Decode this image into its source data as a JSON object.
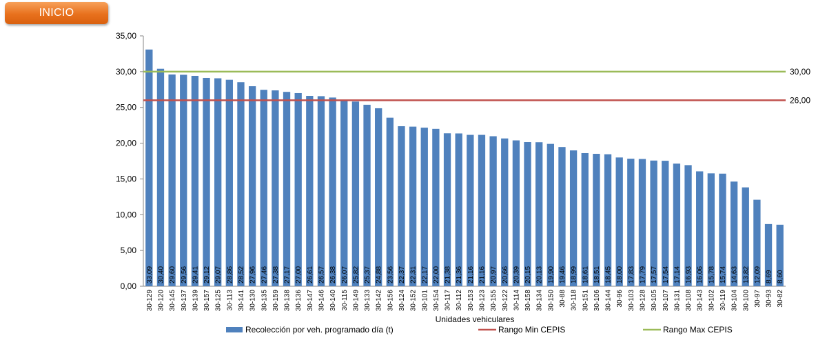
{
  "nav": {
    "inicio_label": "INICIO"
  },
  "colors": {
    "bars": "#4f81bd",
    "min_line": "#c0504d",
    "max_line": "#9bbb59",
    "button": "#e8711d"
  },
  "chart_data": {
    "type": "bar",
    "xlabel": "Unidades vehiculares",
    "ylim": [
      0,
      35
    ],
    "y_ticks": [
      "0,00",
      "5,00",
      "10,00",
      "15,00",
      "20,00",
      "25,00",
      "30,00",
      "35,00"
    ],
    "categories": [
      "30-129",
      "30-120",
      "30-145",
      "30-137",
      "30-139",
      "30-157",
      "30-125",
      "30-113",
      "30-141",
      "30-130",
      "30-135",
      "30-159",
      "30-138",
      "30-136",
      "30-147",
      "30-146",
      "30-140",
      "30-115",
      "30-149",
      "30-133",
      "30-142",
      "30-156",
      "30-124",
      "30-152",
      "30-101",
      "30-154",
      "30-117",
      "30-112",
      "30-153",
      "30-123",
      "30-155",
      "30-122",
      "30-114",
      "30-158",
      "30-134",
      "30-150",
      "30-88",
      "30-118",
      "30-151",
      "30-106",
      "30-144",
      "30-96",
      "30-103",
      "30-128",
      "30-105",
      "30-107",
      "30-131",
      "30-108",
      "30-143",
      "30-102",
      "30-119",
      "30-104",
      "30-100",
      "30-97",
      "30-93",
      "30-82"
    ],
    "series": [
      {
        "name": "Recolección por veh. programado día (t)",
        "type": "bar",
        "values": [
          33.09,
          30.4,
          29.6,
          29.56,
          29.41,
          29.12,
          29.07,
          28.86,
          28.52,
          27.96,
          27.46,
          27.38,
          27.17,
          27.0,
          26.61,
          26.57,
          26.38,
          26.07,
          25.82,
          25.37,
          24.88,
          23.56,
          22.37,
          22.31,
          22.17,
          22.0,
          21.38,
          21.36,
          21.16,
          21.16,
          20.97,
          20.66,
          20.39,
          20.15,
          20.13,
          19.9,
          19.46,
          18.99,
          18.61,
          18.51,
          18.45,
          18.0,
          17.83,
          17.79,
          17.57,
          17.54,
          17.14,
          16.93,
          16.06,
          15.78,
          15.74,
          14.63,
          13.82,
          12.09,
          8.69,
          8.6
        ],
        "labels": [
          "33,09",
          "30,40",
          "29,60",
          "29,56",
          "29,41",
          "29,12",
          "29,07",
          "28,86",
          "28,52",
          "27,96",
          "27,46",
          "27,38",
          "27,17",
          "27,00",
          "26,61",
          "26,57",
          "26,38",
          "26,07",
          "25,82",
          "25,37",
          "24,88",
          "23,56",
          "22,37",
          "22,31",
          "22,17",
          "22,00",
          "21,38",
          "21,36",
          "21,16",
          "21,16",
          "20,97",
          "20,66",
          "20,39",
          "20,15",
          "20,13",
          "19,90",
          "19,46",
          "18,99",
          "18,61",
          "18,51",
          "18,45",
          "18,00",
          "17,83",
          "17,79",
          "17,57",
          "17,54",
          "17,14",
          "16,93",
          "16,06",
          "15,78",
          "15,74",
          "14,63",
          "13,82",
          "12,09",
          "8,69",
          "8,60"
        ]
      },
      {
        "name": "Rango Min CEPIS",
        "type": "line",
        "value": 26.0,
        "label": "26,00"
      },
      {
        "name": "Rango Max CEPIS",
        "type": "line",
        "value": 30.0,
        "label": "30,00"
      }
    ],
    "legend_position": "bottom",
    "grid": false
  }
}
